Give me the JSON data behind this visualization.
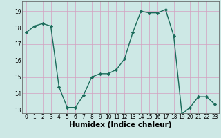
{
  "x": [
    0,
    1,
    2,
    3,
    4,
    5,
    6,
    7,
    8,
    9,
    10,
    11,
    12,
    13,
    14,
    15,
    16,
    17,
    18,
    19,
    20,
    21,
    22,
    23
  ],
  "y": [
    17.7,
    18.1,
    18.25,
    18.1,
    14.4,
    13.15,
    13.15,
    13.9,
    15.0,
    15.2,
    15.2,
    15.45,
    16.1,
    17.7,
    19.0,
    18.9,
    18.9,
    19.1,
    17.5,
    12.75,
    13.15,
    13.8,
    13.8,
    13.35
  ],
  "line_color": "#1a6b5a",
  "marker": "D",
  "marker_size": 2.2,
  "linewidth": 1.0,
  "xlabel": "Humidex (Indice chaleur)",
  "ylim": [
    12.8,
    19.6
  ],
  "yticks": [
    13,
    14,
    15,
    16,
    17,
    18,
    19
  ],
  "xticks": [
    0,
    1,
    2,
    3,
    4,
    5,
    6,
    7,
    8,
    9,
    10,
    11,
    12,
    13,
    14,
    15,
    16,
    17,
    18,
    19,
    20,
    21,
    22,
    23
  ],
  "bg_color": "#cde8e5",
  "grid_color_v": "#d4a0c0",
  "grid_color_h": "#d4a0c0",
  "tick_fontsize": 5.5,
  "xlabel_fontsize": 7.5,
  "xlabel_bold": true
}
